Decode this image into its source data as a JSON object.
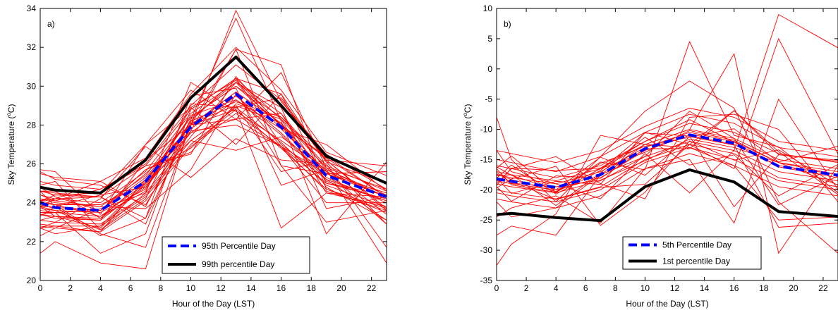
{
  "chart_data": [
    {
      "type": "line",
      "panel_label": "a)",
      "xlabel": "Hour of the Day (LST)",
      "ylabel_main": "Sky Temperature (",
      "ylabel_sup": "o",
      "ylabel_end": "C)",
      "xlim": [
        0,
        23
      ],
      "ylim": [
        20,
        34
      ],
      "xticks": [
        0,
        2,
        4,
        6,
        8,
        10,
        12,
        14,
        16,
        18,
        20,
        22
      ],
      "yticks": [
        20,
        22,
        24,
        26,
        28,
        30,
        32,
        34
      ],
      "legend_position": "bottom-right",
      "x": [
        0,
        1,
        4,
        7,
        10,
        13,
        16,
        19,
        23
      ],
      "series": [
        {
          "name": "95th Percentile Day",
          "color": "#0000ff",
          "style": "dashed",
          "values": [
            24.0,
            23.75,
            23.6,
            25.1,
            27.9,
            29.6,
            27.9,
            25.4,
            24.3
          ]
        },
        {
          "name": "99th percentile Day",
          "color": "#000000",
          "style": "solid",
          "values": [
            24.8,
            24.65,
            24.5,
            26.2,
            29.4,
            31.5,
            29.0,
            26.4,
            25.0
          ]
        }
      ],
      "background_color": "#ff0000",
      "background_lines": [
        [
          23.4,
          23.3,
          23.2,
          24.8,
          27.6,
          29.3,
          27.5,
          25.2,
          24.1
        ],
        [
          23.9,
          23.7,
          23.6,
          25.3,
          28.0,
          29.7,
          28.1,
          25.5,
          24.5
        ],
        [
          24.6,
          24.4,
          24.3,
          25.9,
          28.8,
          30.4,
          28.3,
          25.8,
          24.7
        ],
        [
          23.1,
          23.0,
          22.9,
          24.4,
          27.2,
          28.9,
          27.1,
          24.9,
          23.8
        ],
        [
          25.1,
          24.9,
          24.7,
          26.0,
          29.0,
          31.1,
          29.3,
          26.1,
          25.0
        ],
        [
          22.8,
          22.7,
          22.5,
          24.1,
          26.9,
          28.6,
          26.9,
          24.6,
          23.6
        ],
        [
          24.2,
          24.0,
          23.8,
          25.4,
          28.4,
          30.0,
          28.0,
          25.6,
          24.3
        ],
        [
          23.6,
          23.5,
          23.3,
          25.0,
          27.8,
          29.5,
          27.6,
          25.3,
          24.0
        ],
        [
          25.5,
          25.3,
          25.1,
          26.3,
          29.6,
          32.0,
          29.8,
          26.6,
          25.4
        ],
        [
          23.8,
          23.6,
          23.5,
          24.7,
          28.2,
          29.2,
          28.4,
          25.9,
          24.6
        ],
        [
          22.9,
          22.8,
          22.8,
          24.3,
          27.0,
          28.8,
          26.8,
          24.7,
          23.7
        ],
        [
          24.4,
          24.2,
          24.0,
          25.6,
          28.6,
          30.2,
          28.6,
          25.7,
          24.4
        ],
        [
          21.4,
          22.0,
          20.9,
          20.6,
          28.2,
          30.4,
          27.0,
          25.2,
          23.1
        ],
        [
          23.4,
          23.2,
          23.1,
          24.9,
          28.0,
          33.9,
          29.2,
          26.5,
          24.7
        ],
        [
          23.8,
          23.8,
          22.3,
          23.2,
          29.5,
          29.9,
          24.9,
          25.7,
          20.9
        ],
        [
          24.0,
          23.9,
          23.9,
          25.0,
          27.2,
          26.7,
          27.4,
          25.7,
          24.3
        ],
        [
          22.7,
          23.0,
          24.2,
          26.9,
          25.3,
          27.3,
          26.2,
          26.0,
          21.7
        ],
        [
          24.6,
          24.5,
          24.3,
          23.2,
          28.0,
          28.8,
          22.7,
          24.5,
          24.3
        ],
        [
          23.5,
          23.5,
          21.4,
          22.4,
          28.8,
          30.4,
          29.6,
          26.1,
          22.9
        ],
        [
          25.7,
          25.6,
          23.4,
          27.0,
          28.9,
          27.0,
          29.6,
          25.0,
          24.4
        ],
        [
          24.2,
          24.1,
          24.7,
          25.9,
          26.5,
          30.5,
          27.9,
          26.4,
          24.3
        ],
        [
          24.1,
          24.2,
          24.3,
          22.9,
          28.3,
          33.5,
          28.2,
          22.4,
          26.1
        ],
        [
          24.1,
          24.4,
          24.5,
          27.0,
          29.8,
          28.3,
          30.7,
          25.8,
          23.4
        ],
        [
          23.1,
          23.3,
          23.1,
          26.2,
          28.0,
          29.7,
          25.9,
          25.5,
          25.6
        ],
        [
          24.0,
          23.9,
          22.4,
          21.7,
          28.0,
          28.3,
          28.6,
          25.1,
          24.1
        ],
        [
          24.6,
          23.8,
          24.4,
          24.8,
          28.1,
          29.0,
          28.1,
          24.8,
          23.1
        ],
        [
          25.6,
          25.2,
          24.9,
          23.9,
          27.7,
          31.9,
          31.1,
          24.7,
          23.5
        ],
        [
          22.7,
          22.8,
          22.5,
          25.2,
          28.0,
          31.9,
          25.9,
          23.0,
          23.6
        ],
        [
          23.7,
          23.6,
          22.6,
          24.5,
          30.2,
          28.7,
          27.2,
          25.6,
          22.9
        ],
        [
          24.4,
          24.1,
          23.8,
          23.7,
          25.7,
          29.6,
          26.9,
          24.0,
          24.0
        ],
        [
          23.3,
          23.8,
          23.6,
          25.7,
          26.8,
          29.0,
          25.6,
          26.2,
          25.9
        ],
        [
          24.9,
          25.1,
          22.6,
          24.2,
          29.1,
          28.9,
          29.4,
          26.2,
          23.6
        ],
        [
          22.3,
          22.7,
          23.7,
          24.5,
          27.4,
          30.2,
          28.9,
          23.7,
          24.3
        ],
        [
          23.8,
          24.2,
          25.1,
          23.8,
          28.3,
          30.2,
          27.8,
          27.0,
          24.6
        ],
        [
          24.1,
          23.9,
          23.3,
          24.6,
          28.9,
          30.3,
          28.0,
          26.3,
          24.3
        ],
        [
          22.7,
          22.4,
          22.8,
          25.1,
          28.4,
          30.0,
          28.4,
          26.2,
          23.7
        ],
        [
          23.4,
          23.5,
          23.6,
          25.5,
          27.7,
          28.0,
          26.9,
          25.0,
          24.2
        ],
        [
          24.8,
          24.3,
          23.6,
          25.7,
          26.6,
          29.1,
          28.3,
          24.5,
          23.8
        ],
        [
          24.6,
          24.6,
          23.2,
          25.2,
          27.6,
          28.3,
          26.9,
          25.5,
          24.3
        ],
        [
          23.8,
          23.3,
          22.7,
          25.0,
          28.5,
          29.3,
          27.8,
          25.5,
          25.6
        ]
      ]
    },
    {
      "type": "line",
      "panel_label": "b)",
      "xlabel": "Hour of the Day (LST)",
      "ylabel_main": "Sky Temperature (",
      "ylabel_sup": "o",
      "ylabel_end": "C)",
      "xlim": [
        0,
        23
      ],
      "ylim": [
        -35,
        10
      ],
      "xticks": [
        0,
        2,
        4,
        6,
        8,
        10,
        12,
        14,
        16,
        18,
        20,
        22
      ],
      "yticks": [
        -35,
        -30,
        -25,
        -20,
        -15,
        -10,
        -5,
        0,
        5,
        10
      ],
      "legend_position": "bottom-right",
      "x": [
        0,
        1,
        4,
        7,
        10,
        13,
        16,
        19,
        23
      ],
      "series": [
        {
          "name": "5th Percentile Day",
          "color": "#0000ff",
          "style": "dashed",
          "values": [
            -18.2,
            -18.6,
            -19.6,
            -17.5,
            -13.2,
            -10.9,
            -12.3,
            -16.1,
            -17.6
          ]
        },
        {
          "name": "1st percentile Day",
          "color": "#000000",
          "style": "solid",
          "values": [
            -24.1,
            -23.9,
            -24.6,
            -25.1,
            -19.5,
            -16.7,
            -18.7,
            -23.6,
            -24.4
          ]
        }
      ],
      "background_color": "#ff0000",
      "background_lines": [
        [
          -16.0,
          -16.5,
          -18.0,
          -16.0,
          -12.0,
          -9.0,
          -10.5,
          -14.0,
          -15.5
        ],
        [
          -17.5,
          -18.0,
          -19.0,
          -17.0,
          -13.0,
          -10.5,
          -12.0,
          -15.5,
          -17.0
        ],
        [
          -19.0,
          -19.5,
          -20.5,
          -18.5,
          -14.5,
          -12.0,
          -13.5,
          -17.0,
          -18.5
        ],
        [
          -20.5,
          -21.0,
          -22.0,
          -20.0,
          -15.5,
          -13.0,
          -15.0,
          -18.5,
          -20.0
        ],
        [
          -15.0,
          -15.5,
          -17.0,
          -14.5,
          -10.5,
          -7.5,
          -9.0,
          -13.0,
          -14.5
        ],
        [
          -18.5,
          -19.0,
          -20.0,
          -18.0,
          -13.5,
          -11.0,
          -12.5,
          -16.0,
          -17.5
        ],
        [
          -21.5,
          -22.0,
          -23.0,
          -21.0,
          -16.5,
          -14.0,
          -16.0,
          -19.5,
          -21.0
        ],
        [
          -17.0,
          -17.5,
          -18.5,
          -16.5,
          -12.5,
          -10.0,
          -11.5,
          -15.0,
          -16.5
        ],
        [
          -13.5,
          -14.0,
          -15.5,
          -13.5,
          -9.5,
          -6.5,
          -8.0,
          -12.0,
          -13.5
        ],
        [
          -20.0,
          -20.5,
          -21.5,
          -19.5,
          -15.0,
          -12.5,
          -14.0,
          -18.0,
          -19.5
        ],
        [
          -8.0,
          -15.0,
          -22.0,
          -14.5,
          -7.0,
          -2.0,
          -6.5,
          -22.0,
          -30.5
        ],
        [
          -27.5,
          -26.0,
          -27.5,
          -17.5,
          -14.5,
          -7.0,
          -11.5,
          -22.5,
          -17.7
        ],
        [
          -17.4,
          -18.3,
          -20.3,
          -15.4,
          -16.7,
          4.5,
          -11.0,
          -12.9,
          -20.5
        ],
        [
          -18.0,
          -20.6,
          -18.6,
          -19.1,
          -10.5,
          -12.5,
          -16.5,
          5.0,
          -14.1
        ],
        [
          -19.5,
          -21.9,
          -17.7,
          -18.1,
          -13.2,
          -13.2,
          -6.9,
          -14.2,
          -15.1
        ],
        [
          -19.7,
          -18.2,
          -16.1,
          -25.9,
          -20.4,
          -11.9,
          -15.1,
          -13.4,
          -19.3
        ],
        [
          -19.3,
          -16.4,
          -16.8,
          -16.4,
          -12.0,
          -8.4,
          -12.1,
          -16.2,
          -18.0
        ],
        [
          -16.2,
          -17.6,
          -20.0,
          -14.6,
          -17.6,
          -11.2,
          -12.6,
          -26.2,
          -25.5
        ],
        [
          -16.4,
          -14.4,
          -20.4,
          -15.6,
          -12.8,
          -11.3,
          -9.9,
          -15.4,
          -12.8
        ],
        [
          -17.7,
          -17.5,
          -22.6,
          -17.2,
          -11.3,
          -15.9,
          -14.2,
          -21.0,
          -15.8
        ],
        [
          -18.0,
          -18.6,
          -21.6,
          -19.6,
          -19.1,
          -12.5,
          -6.9,
          -13.7,
          -20.8
        ],
        [
          -16.5,
          -19.2,
          -20.4,
          -16.5,
          -13.8,
          -10.2,
          -11.8,
          -15.5,
          -17.5
        ],
        [
          -18.1,
          -15.9,
          -20.7,
          -16.8,
          -10.6,
          -11.1,
          -22.8,
          -14.2,
          -15.3
        ],
        [
          -17.1,
          -18.9,
          -19.5,
          -18.4,
          -15.2,
          -11.6,
          -13.0,
          -15.5,
          -19.2
        ],
        [
          -32.5,
          -29.0,
          -24.0,
          -11.0,
          -12.5,
          -13.0,
          -16.0,
          -25.0,
          -24.5
        ],
        [
          -19.0,
          -16.5,
          -14.5,
          -19.0,
          -21.5,
          -8.0,
          -7.5,
          -10.0,
          -22.0
        ],
        [
          -13.5,
          -17.0,
          -19.0,
          -21.5,
          -14.0,
          -20.5,
          -13.5,
          9.0,
          3.5
        ],
        [
          -22.0,
          -24.5,
          -23.0,
          -17.5,
          -12.5,
          -10.0,
          2.5,
          -30.5,
          -16.0
        ],
        [
          -24.5,
          -23.0,
          -21.0,
          -25.5,
          -16.5,
          -15.0,
          -25.5,
          -5.0,
          -20.0
        ]
      ]
    }
  ]
}
